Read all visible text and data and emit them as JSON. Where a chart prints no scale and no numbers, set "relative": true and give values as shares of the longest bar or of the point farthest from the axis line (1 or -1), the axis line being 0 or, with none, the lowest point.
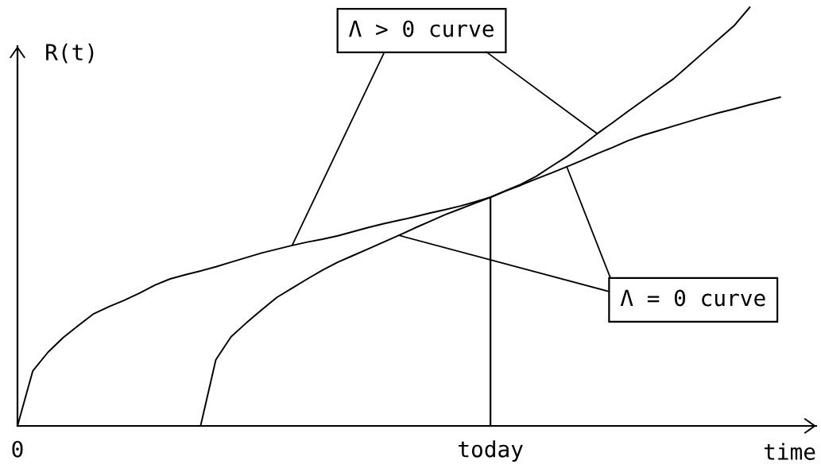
{
  "chart_data": {
    "type": "line",
    "relative": true,
    "ylabel": "R(t)",
    "xlabel": "time",
    "categories": [
      "0",
      null,
      null,
      null,
      null,
      null,
      null,
      null,
      null,
      null,
      null,
      null,
      null,
      null,
      null,
      null,
      null,
      null,
      null,
      null,
      null,
      null,
      null,
      null,
      null,
      null,
      null,
      null,
      null,
      null,
      null,
      "today",
      null,
      null,
      null,
      null,
      null,
      null,
      null,
      null,
      null,
      null,
      null,
      null,
      null,
      null,
      null,
      null,
      null,
      null,
      null,
      null,
      null
    ],
    "ref_lines": [
      {
        "axis": "x",
        "value": "today"
      }
    ],
    "series": [
      {
        "name": "Λ > 0 curve",
        "color": "#000000",
        "values": [
          0,
          0.131,
          0.176,
          0.211,
          0.24,
          0.268,
          0.285,
          0.3,
          0.317,
          0.336,
          0.351,
          0.361,
          0.37,
          0.38,
          0.391,
          0.402,
          0.413,
          0.422,
          0.431,
          0.439,
          0.446,
          0.454,
          0.464,
          0.474,
          0.483,
          0.491,
          0.499,
          0.508,
          0.516,
          0.525,
          0.535,
          0.546,
          0.562,
          0.577,
          0.596,
          0.62,
          0.643,
          0.67,
          0.698,
          0.724,
          0.751,
          0.777,
          0.803,
          0.829,
          0.861,
          0.893,
          0.925,
          0.957,
          1.0,
          null,
          null,
          null,
          null
        ]
      },
      {
        "name": "Λ = 0 curve",
        "color": "#000000",
        "values": [
          null,
          null,
          null,
          null,
          null,
          null,
          null,
          null,
          null,
          null,
          null,
          null,
          0,
          0.158,
          0.213,
          0.246,
          0.277,
          0.307,
          0.329,
          0.351,
          0.372,
          0.391,
          0.407,
          0.423,
          0.439,
          0.455,
          0.472,
          0.488,
          0.504,
          0.518,
          0.532,
          0.546,
          0.561,
          0.575,
          0.59,
          0.604,
          0.619,
          0.634,
          0.65,
          0.665,
          0.681,
          0.694,
          0.705,
          0.716,
          0.727,
          0.738,
          0.748,
          0.757,
          0.767,
          0.776,
          0.785,
          null,
          null
        ]
      }
    ]
  }
}
